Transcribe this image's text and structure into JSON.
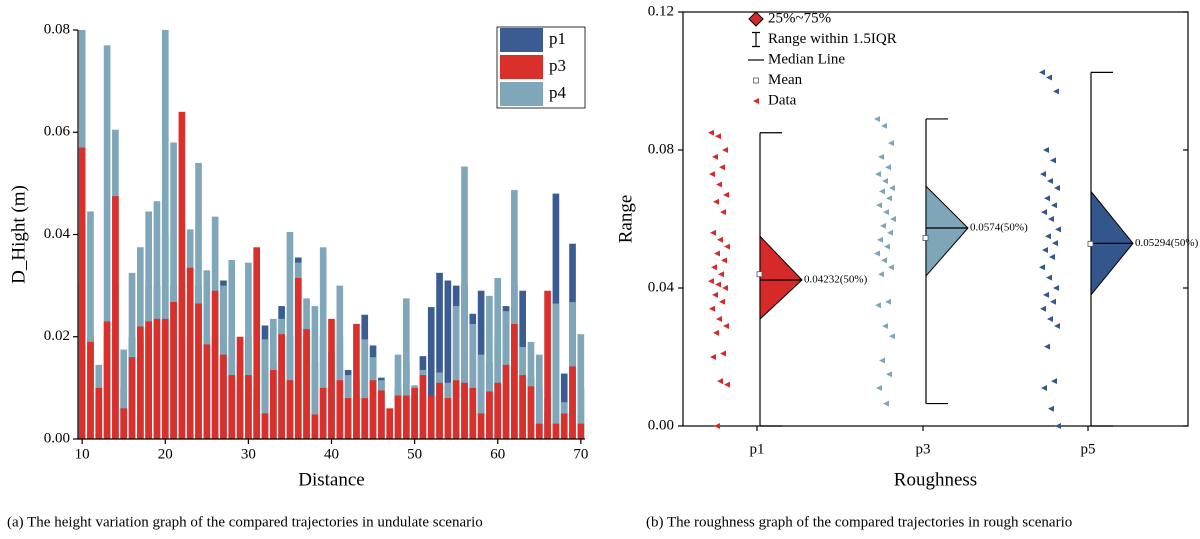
{
  "chart_data": [
    {
      "type": "bar",
      "xlabel": "Distance",
      "ylabel": "D_Hight (m)",
      "caption": "(a) The height variation graph of the compared trajectories in undulate scenario",
      "x": [
        10,
        11,
        12,
        13,
        14,
        15,
        16,
        17,
        18,
        19,
        20,
        21,
        22,
        23,
        24,
        25,
        26,
        27,
        28,
        29,
        30,
        31,
        32,
        33,
        34,
        35,
        36,
        37,
        38,
        39,
        40,
        41,
        42,
        43,
        44,
        45,
        46,
        47,
        48,
        49,
        50,
        51,
        52,
        53,
        54,
        55,
        56,
        57,
        58,
        59,
        60,
        61,
        62,
        63,
        64,
        65,
        66,
        67,
        68,
        69,
        70
      ],
      "series": [
        {
          "name": "p1",
          "color": "#3a5c92",
          "values": [
            0.03,
            0.02,
            0.008,
            0.02,
            0.03,
            0.01,
            0.02,
            0.02,
            0.03,
            0.03,
            0.04,
            0.03,
            0.02,
            0.02,
            0.03,
            0.02,
            0.02,
            0.031,
            0.02,
            0.01,
            0.02,
            0.008,
            0.0222,
            0.015,
            0.026,
            0.02,
            0.0355,
            0.02,
            0.015,
            0.02,
            0.01,
            0.02,
            0.0135,
            0.008,
            0.0243,
            0.0183,
            0.012,
            0.0005,
            0.01,
            0.015,
            0.008,
            0.0162,
            0.0258,
            0.0325,
            0.031,
            0.03,
            0.03,
            0.0245,
            0.029,
            0.015,
            0.02,
            0.026,
            0.03,
            0.029,
            0.012,
            0.01,
            0.005,
            0.048,
            0.0128,
            0.0382,
            0.01
          ]
        },
        {
          "name": "p3",
          "color": "#d9302c",
          "values": [
            0.057,
            0.019,
            0.01,
            0.023,
            0.0475,
            0.006,
            0.016,
            0.022,
            0.023,
            0.0235,
            0.0235,
            0.0268,
            0.064,
            0.0335,
            0.0265,
            0.0185,
            0.029,
            0.0165,
            0.0125,
            0.02,
            0.0125,
            0.0375,
            0.005,
            0.0135,
            0.0205,
            0.0115,
            0.0315,
            0.0215,
            0.0048,
            0.01,
            0.0235,
            0.0115,
            0.008,
            0.0225,
            0.008,
            0.0115,
            0.0095,
            0.006,
            0.0085,
            0.0085,
            0.01,
            0.0125,
            0.0085,
            0.011,
            0.008,
            0.0115,
            0.011,
            0.01,
            0.005,
            0.0093,
            0.011,
            0.0145,
            0.0225,
            0.0125,
            0.0103,
            0.003,
            0.029,
            0.003,
            0.005,
            0.0142,
            0.003
          ]
        },
        {
          "name": "p4",
          "color": "#7fa7b9",
          "values": [
            0.08,
            0.0445,
            0.0145,
            0.077,
            0.0605,
            0.0175,
            0.0325,
            0.0375,
            0.0445,
            0.0465,
            0.08,
            0.058,
            0.03,
            0.041,
            0.054,
            0.033,
            0.0435,
            0.03,
            0.035,
            0.015,
            0.0345,
            0.01,
            0.0195,
            0.0235,
            0.0235,
            0.0405,
            0.0345,
            0.0275,
            0.026,
            0.0375,
            0.017,
            0.03,
            0.0125,
            0.0115,
            0.0195,
            0.016,
            0.0115,
            0.0008,
            0.0165,
            0.0275,
            0.0105,
            0.0135,
            0.007,
            0.013,
            0.011,
            0.026,
            0.0533,
            0.0225,
            0.0165,
            0.028,
            0.0315,
            0.025,
            0.0487,
            0.018,
            0.019,
            0.0165,
            0.008,
            0.0265,
            0.0072,
            0.0268,
            0.0205
          ]
        }
      ],
      "xlim": [
        9.5,
        70.5
      ],
      "xticks": [
        10,
        20,
        30,
        40,
        50,
        60,
        70
      ],
      "ylim": [
        0,
        0.08
      ],
      "yticks": [
        {
          "value": 0,
          "label": "0.00"
        },
        {
          "value": 0.02,
          "label": "0.02"
        },
        {
          "value": 0.04,
          "label": "0.04"
        },
        {
          "value": 0.06,
          "label": "0.06"
        },
        {
          "value": 0.08,
          "label": "0.08"
        }
      ],
      "legend": "upper right"
    },
    {
      "type": "box",
      "xlabel": "Roughness",
      "ylabel": "Range",
      "caption": "(b) The roughness graph of the compared trajectories in rough scenario",
      "legend_entries": [
        "25%~75%",
        "Range within 1.5IQR",
        "Median Line",
        "Mean",
        "Data"
      ],
      "categories": [
        "p1",
        "p3",
        "p5"
      ],
      "series": [
        {
          "name": "p1",
          "color": "#d62a2a",
          "q1": 0.031,
          "median": 0.04232,
          "median_label": "0.04232(50%)",
          "q3": 0.055,
          "whisker_low": 0,
          "whisker_high": 0.085,
          "mean": 0.044,
          "data": [
            0.085,
            0.084,
            0.08,
            0.078,
            0.075,
            0.073,
            0.07,
            0.067,
            0.065,
            0.062,
            0.056,
            0.054,
            0.052,
            0.05,
            0.048,
            0.046,
            0.044,
            0.042,
            0.041,
            0.04,
            0.038,
            0.036,
            0.034,
            0.031,
            0.029,
            0.027,
            0.021,
            0.02,
            0.013,
            0.012,
            0
          ]
        },
        {
          "name": "p3",
          "color": "#7ea6b8",
          "q1": 0.0435,
          "median": 0.0574,
          "median_label": "0.0574(50%)",
          "q3": 0.0695,
          "whisker_low": 0.0065,
          "whisker_high": 0.089,
          "mean": 0.0545,
          "data": [
            0.089,
            0.087,
            0.082,
            0.078,
            0.075,
            0.073,
            0.071,
            0.069,
            0.068,
            0.066,
            0.064,
            0.062,
            0.06,
            0.058,
            0.056,
            0.054,
            0.052,
            0.05,
            0.048,
            0.046,
            0.044,
            0.036,
            0.035,
            0.029,
            0.026,
            0.019,
            0.015,
            0.011,
            0.0065
          ]
        },
        {
          "name": "p5",
          "color": "#33568c",
          "q1": 0.038,
          "median": 0.05294,
          "median_label": "0.05294(50%)",
          "q3": 0.068,
          "whisker_low": 0,
          "whisker_high": 0.1025,
          "mean": 0.0528,
          "data": [
            0.1025,
            0.101,
            0.097,
            0.08,
            0.077,
            0.073,
            0.071,
            0.069,
            0.066,
            0.064,
            0.062,
            0.06,
            0.057,
            0.055,
            0.053,
            0.051,
            0.049,
            0.046,
            0.043,
            0.04,
            0.038,
            0.036,
            0.034,
            0.031,
            0.029,
            0.023,
            0.013,
            0.011,
            0.005,
            0
          ]
        }
      ],
      "ylim": [
        0,
        0.12
      ],
      "yticks": [
        {
          "value": 0,
          "label": "0.00"
        },
        {
          "value": 0.04,
          "label": "0.04"
        },
        {
          "value": 0.08,
          "label": "0.08"
        },
        {
          "value": 0.12,
          "label": "0.12"
        }
      ]
    }
  ]
}
